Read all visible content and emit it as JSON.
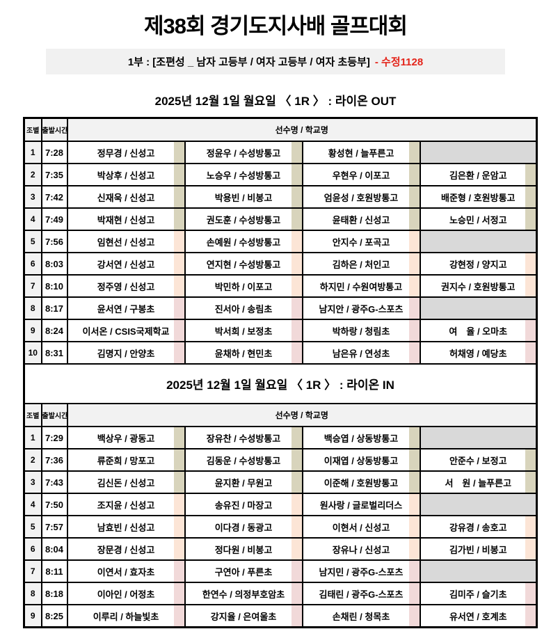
{
  "page": {
    "title": "제38회 경기도지사배 골프대회",
    "subtitle_main": "1부 : [조편성 _ 남자 고등부 / 여자 고등부 / 여자 초등부]",
    "subtitle_note": "- 수정1128"
  },
  "table_header": {
    "group": "조별",
    "time": "출발시간",
    "players": "선수명 / 학교명"
  },
  "colors": {
    "accent_red": "#e4251b",
    "subtitle_bg": "#f1f1f1",
    "header_bg": "#f2f2f2",
    "empty_cell": "#d9d9d9",
    "border": "#000000",
    "category_boys_hs": "#d8d4bc",
    "category_girls_hs": "#fce5d6",
    "category_girls_elem": "#f1d9d9"
  },
  "sections": [
    {
      "title": "2025년 12월 1일 월요일 〈 1R 〉 : 라이온 OUT",
      "rows": [
        {
          "no": "1",
          "time": "7:28",
          "category": "boys_hs",
          "players": [
            "정무경 / 신성고",
            "정윤우 / 수성방통고",
            "황성현 / 늘푸른고",
            ""
          ]
        },
        {
          "no": "2",
          "time": "7:35",
          "category": "boys_hs",
          "players": [
            "박상후 / 신성고",
            "노승우 / 수성방통고",
            "우현우 / 이포고",
            "김은환 / 운암고"
          ]
        },
        {
          "no": "3",
          "time": "7:42",
          "category": "boys_hs",
          "players": [
            "신재욱 / 신성고",
            "박용빈 / 비봉고",
            "엄윤성 / 호원방통고",
            "배준형 / 호원방통고"
          ]
        },
        {
          "no": "4",
          "time": "7:49",
          "category": "boys_hs",
          "players": [
            "박재현 / 신성고",
            "권도훈 / 수성방통고",
            "윤태환 / 신성고",
            "노승민 / 서정고"
          ]
        },
        {
          "no": "5",
          "time": "7:56",
          "category": "girls_hs",
          "players": [
            "임현선 / 신성고",
            "손예원 / 수성방통고",
            "안지수 / 포곡고",
            ""
          ]
        },
        {
          "no": "6",
          "time": "8:03",
          "category": "girls_hs",
          "players": [
            "강서연 / 신성고",
            "연지현 / 수성방통고",
            "김하은 / 처인고",
            "강현정 / 양지고"
          ]
        },
        {
          "no": "7",
          "time": "8:10",
          "category": "girls_hs",
          "players": [
            "정주영 / 신성고",
            "박민하 / 이포고",
            "하지민 / 수원여방통고",
            "권지수 / 호원방통고"
          ]
        },
        {
          "no": "8",
          "time": "8:17",
          "category": "girls_elem",
          "players": [
            "윤서연 / 구봉초",
            "진서아 / 송림초",
            "남지안 / 광주G-스포츠",
            ""
          ]
        },
        {
          "no": "9",
          "time": "8:24",
          "category": "girls_elem",
          "players": [
            "이서온 / CSIS국제학교",
            "박서희 / 보정초",
            "박하랑 / 청림초",
            "여　율 / 오마초"
          ]
        },
        {
          "no": "10",
          "time": "8:31",
          "category": "girls_elem",
          "players": [
            "김명지 / 안양초",
            "윤채하 / 현민초",
            "남은유 / 연성초",
            "허채영 / 예당초"
          ]
        }
      ]
    },
    {
      "title": "2025년 12월 1일 월요일 〈 1R 〉 : 라이온 IN",
      "rows": [
        {
          "no": "1",
          "time": "7:29",
          "category": "boys_hs",
          "players": [
            "백상우 / 광동고",
            "장유찬 / 수성방통고",
            "백승엽 / 상동방통고",
            ""
          ]
        },
        {
          "no": "2",
          "time": "7:36",
          "category": "boys_hs",
          "players": [
            "류준희 / 망포고",
            "김동운 / 수성방통고",
            "이재엽 / 상동방통고",
            "안준수 / 보정고"
          ]
        },
        {
          "no": "3",
          "time": "7:43",
          "category": "boys_hs",
          "players": [
            "김신돈 / 신성고",
            "윤지환 / 무원고",
            "이준해 / 호원방통고",
            "서　원 / 늘푸른고"
          ]
        },
        {
          "no": "4",
          "time": "7:50",
          "category": "girls_hs",
          "players": [
            "조지윤 / 신성고",
            "송유진 / 마장고",
            "원사랑 / 글로벌리더스",
            ""
          ]
        },
        {
          "no": "5",
          "time": "7:57",
          "category": "girls_hs",
          "players": [
            "남효빈 / 신성고",
            "이다경 / 동광고",
            "이현서 / 신성고",
            "강유경 / 송호고"
          ]
        },
        {
          "no": "6",
          "time": "8:04",
          "category": "girls_hs",
          "players": [
            "장문경 / 신성고",
            "정다원 / 비봉고",
            "장유나 / 신성고",
            "김가빈 / 비봉고"
          ]
        },
        {
          "no": "7",
          "time": "8:11",
          "category": "girls_elem",
          "players": [
            "이연서 / 효자초",
            "구연아 / 푸른초",
            "남지민 / 광주G-스포츠",
            ""
          ]
        },
        {
          "no": "8",
          "time": "8:18",
          "category": "girls_elem",
          "players": [
            "이아인 / 어정초",
            "한연수 / 의정부호암초",
            "김태린 / 광주G-스포츠",
            "김미주 / 슬기초"
          ]
        },
        {
          "no": "9",
          "time": "8:25",
          "category": "girls_elem",
          "players": [
            "이루리 / 하늘빛초",
            "강지율 / 은여울초",
            "손채린 / 청목초",
            "유서연 / 호계초"
          ]
        }
      ]
    }
  ]
}
